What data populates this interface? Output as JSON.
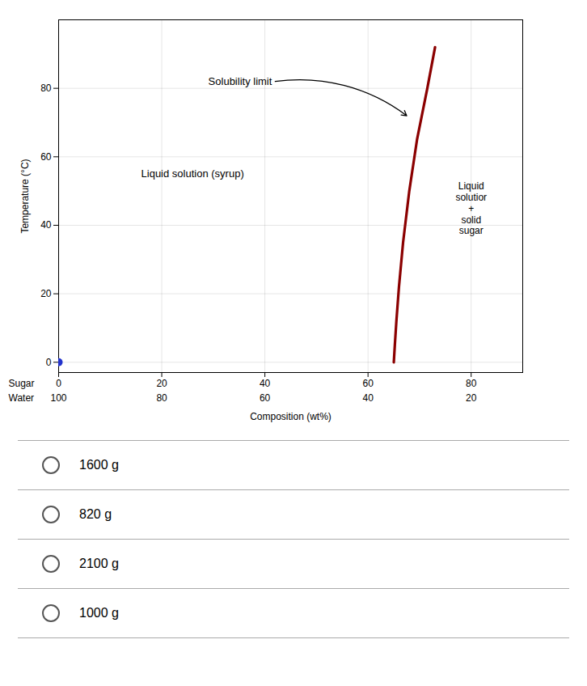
{
  "chart_data": {
    "type": "line",
    "xlabel": "Composition (wt%)",
    "ylabel": "Temperature (°C)",
    "x_row_label": "Sugar",
    "x2_row_label": "Water",
    "xlim": [
      0,
      90
    ],
    "xticks": [
      0,
      20,
      40,
      60,
      80
    ],
    "x2lim": [
      100,
      10
    ],
    "x2ticks": [
      100,
      80,
      60,
      40,
      20
    ],
    "ylim": [
      -3,
      100
    ],
    "yticks": [
      0,
      20,
      40,
      60,
      80
    ],
    "grid": true,
    "series": [
      {
        "type": "line",
        "color": "#8b0000",
        "x": [
          65.0,
          65.2,
          65.5,
          66.0,
          66.8,
          68.0,
          69.5,
          71.5,
          73.0
        ],
        "values": [
          0,
          5,
          12,
          22,
          35,
          50,
          65,
          80,
          92
        ]
      },
      {
        "type": "scatter",
        "color": "#2233cc",
        "x": [
          0
        ],
        "values": [
          0
        ]
      }
    ],
    "annotations": [
      {
        "text": "Liquid solution (syrup)",
        "x": 16,
        "y": 55
      },
      {
        "text": "Liquid\nsolutior\n+\nsolid\nsugar",
        "x": 80,
        "y": 45
      },
      {
        "text": "Solubility limit",
        "x": 42,
        "y": 82,
        "arrow_x": 67.5,
        "arrow_y": 72
      }
    ],
    "options": [
      "1600 g",
      "820 g",
      "2100 g",
      "1000 g"
    ]
  }
}
